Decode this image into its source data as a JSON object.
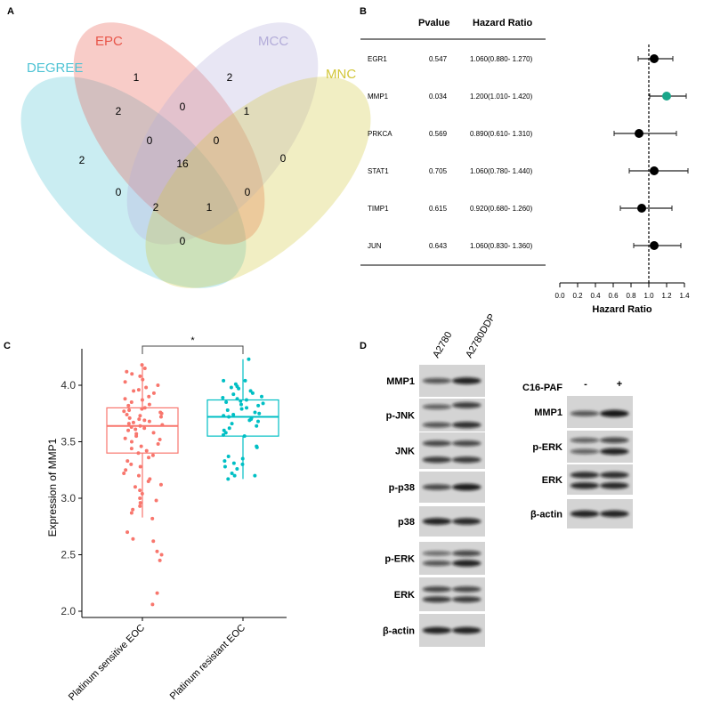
{
  "panels": {
    "a": "A",
    "b": "B",
    "c": "C",
    "d": "D"
  },
  "chart_data": [
    {
      "type": "venn",
      "sets": [
        {
          "name": "DEGREE",
          "color": "#4EC3D4"
        },
        {
          "name": "EPC",
          "color": "#E8564A"
        },
        {
          "name": "MCC",
          "color": "#B3ACD9"
        },
        {
          "name": "MNC",
          "color": "#D2C637"
        }
      ],
      "regions": [
        {
          "sets": "EPC",
          "value": "1"
        },
        {
          "sets": "MCC",
          "value": "2"
        },
        {
          "sets": "DEGREE+EPC",
          "value": "2"
        },
        {
          "sets": "EPC+MCC",
          "value": "0"
        },
        {
          "sets": "MCC+MNC",
          "value": "1"
        },
        {
          "sets": "DEGREE",
          "value": "2"
        },
        {
          "sets": "DEGREE+EPC+MCC",
          "value": "0"
        },
        {
          "sets": "EPC+MCC+MNC",
          "value": "0"
        },
        {
          "sets": "MNC",
          "value": "0"
        },
        {
          "sets": "DEGREE+EPC+MCC+MNC",
          "value": "16"
        },
        {
          "sets": "DEGREE+MCC",
          "value": "0"
        },
        {
          "sets": "EPC+MNC",
          "value": "0"
        },
        {
          "sets": "DEGREE+EPC+MNC",
          "value": "2"
        },
        {
          "sets": "DEGREE+MCC+MNC",
          "value": "1"
        },
        {
          "sets": "DEGREE+MNC",
          "value": "0"
        }
      ]
    },
    {
      "type": "forest",
      "headers": {
        "pvalue": "Pvalue",
        "hr": "Hazard Ratio"
      },
      "xlabel": "Hazard Ratio",
      "xlim": [
        0,
        1.4
      ],
      "ticks": [
        "0.0",
        "0.2",
        "0.4",
        "0.6",
        "0.8",
        "1.0",
        "1.2",
        "1.4"
      ],
      "reference": 1.0,
      "highlight_color": "#1AA68A",
      "rows": [
        {
          "gene": "EGR1",
          "pvalue": "0.547",
          "hr_text": "1.060(0.880- 1.270)",
          "hr": 1.06,
          "lo": 0.88,
          "hi": 1.27,
          "highlight": false
        },
        {
          "gene": "MMP1",
          "pvalue": "0.034",
          "hr_text": "1.200(1.010- 1.420)",
          "hr": 1.2,
          "lo": 1.01,
          "hi": 1.42,
          "highlight": true
        },
        {
          "gene": "PRKCA",
          "pvalue": "0.569",
          "hr_text": "0.890(0.610- 1.310)",
          "hr": 0.89,
          "lo": 0.61,
          "hi": 1.31,
          "highlight": false
        },
        {
          "gene": "STAT1",
          "pvalue": "0.705",
          "hr_text": "1.060(0.780- 1.440)",
          "hr": 1.06,
          "lo": 0.78,
          "hi": 1.44,
          "highlight": false
        },
        {
          "gene": "TIMP1",
          "pvalue": "0.615",
          "hr_text": "0.920(0.680- 1.260)",
          "hr": 0.92,
          "lo": 0.68,
          "hi": 1.26,
          "highlight": false
        },
        {
          "gene": "JUN",
          "pvalue": "0.643",
          "hr_text": "1.060(0.830- 1.360)",
          "hr": 1.06,
          "lo": 0.83,
          "hi": 1.36,
          "highlight": false
        }
      ]
    },
    {
      "type": "box",
      "ylabel": "Expression of MMP1",
      "ylim": [
        2.0,
        4.3
      ],
      "yticks": [
        "2.0",
        "2.5",
        "3.0",
        "3.5",
        "4.0"
      ],
      "significance": "*",
      "groups": [
        {
          "name": "Platinum sensitive  EOC",
          "color": "#F8766D",
          "whisker_low": 2.83,
          "q1": 3.4,
          "median": 3.64,
          "q3": 3.8,
          "whisker_high": 4.18,
          "points": [
            4.18,
            4.15,
            4.12,
            4.1,
            4.08,
            4.05,
            4.03,
            4.0,
            3.98,
            3.96,
            3.95,
            3.93,
            3.9,
            3.88,
            3.87,
            3.85,
            3.83,
            3.82,
            3.8,
            3.79,
            3.78,
            3.77,
            3.76,
            3.75,
            3.74,
            3.73,
            3.72,
            3.71,
            3.7,
            3.69,
            3.68,
            3.67,
            3.66,
            3.65,
            3.64,
            3.63,
            3.62,
            3.61,
            3.6,
            3.58,
            3.57,
            3.55,
            3.53,
            3.52,
            3.5,
            3.48,
            3.46,
            3.44,
            3.42,
            3.4,
            3.38,
            3.36,
            3.33,
            3.3,
            3.28,
            3.25,
            3.22,
            3.2,
            3.17,
            3.15,
            3.12,
            3.1,
            3.07,
            3.04,
            3.0,
            2.98,
            2.96,
            2.93,
            2.9,
            2.87,
            2.82,
            2.7,
            2.64,
            2.62,
            2.53,
            2.5,
            2.45,
            2.16,
            2.06
          ]
        },
        {
          "name": "Platinum resistant EOC",
          "color": "#00BFC4",
          "whisker_low": 3.17,
          "q1": 3.55,
          "median": 3.72,
          "q3": 3.87,
          "whisker_high": 4.23,
          "points": [
            4.23,
            4.04,
            4.04,
            4.01,
            3.99,
            3.98,
            3.97,
            3.95,
            3.93,
            3.92,
            3.9,
            3.89,
            3.88,
            3.87,
            3.86,
            3.85,
            3.84,
            3.83,
            3.82,
            3.8,
            3.79,
            3.78,
            3.76,
            3.75,
            3.74,
            3.73,
            3.72,
            3.71,
            3.7,
            3.69,
            3.68,
            3.66,
            3.64,
            3.62,
            3.6,
            3.58,
            3.56,
            3.55,
            3.46,
            3.45,
            3.37,
            3.35,
            3.33,
            3.31,
            3.3,
            3.28,
            3.26,
            3.22,
            3.2,
            3.2,
            3.17
          ]
        }
      ]
    }
  ],
  "blots": {
    "left": {
      "lanes": [
        "A2780",
        "A2780DDP"
      ],
      "rows": [
        "MMP1",
        "p-JNK",
        "JNK",
        "p-p38",
        "p38",
        "p-ERK",
        "ERK",
        "β-actin"
      ]
    },
    "right": {
      "treatment": "C16-PAF",
      "lanes": [
        "-",
        "+"
      ],
      "rows": [
        "MMP1",
        "p-ERK",
        "ERK",
        "β-actin"
      ]
    }
  }
}
